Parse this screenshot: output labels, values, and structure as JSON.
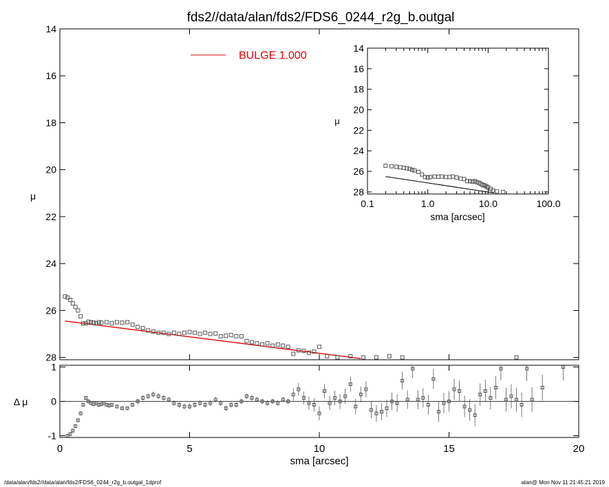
{
  "title": "fds2//data/alan/fds2/FDS6_0244_r2g_b.outgal",
  "footer": {
    "left": "/data/alan/fds2//data/alan/fds2/FDS6_0244_r2g_b.outgal_1dprof",
    "right": "alan@  Mon Nov 11 21:45:21 2019"
  },
  "colors": {
    "model": "#e00000",
    "data": "#555555",
    "axes": "#000000"
  },
  "chart_data": [
    {
      "id": "main",
      "type": "scatter",
      "xlabel": "sma [arcsec]",
      "ylabel": "μ",
      "xlim": [
        0,
        20
      ],
      "ylim": [
        28.1,
        14
      ],
      "y_inverted": true,
      "xticks": [
        0,
        5,
        10,
        15,
        20
      ],
      "yticks": [
        14,
        16,
        18,
        20,
        22,
        24,
        26,
        28
      ],
      "legend": {
        "label": "BULGE  1.000",
        "placement": "top-center"
      },
      "model_line": {
        "name": "BULGE",
        "x": [
          0.2,
          11.6
        ],
        "y": [
          26.45,
          28.05
        ]
      },
      "observed": {
        "x": [
          0.2,
          0.3,
          0.4,
          0.5,
          0.6,
          0.7,
          0.8,
          0.9,
          1.0,
          1.1,
          1.2,
          1.3,
          1.4,
          1.5,
          1.6,
          1.8,
          2.0,
          2.2,
          2.4,
          2.6,
          2.8,
          3.0,
          3.2,
          3.4,
          3.6,
          3.8,
          4.0,
          4.2,
          4.4,
          4.6,
          4.8,
          5.0,
          5.2,
          5.4,
          5.6,
          5.8,
          6.0,
          6.2,
          6.4,
          6.6,
          6.8,
          7.0,
          7.2,
          7.4,
          7.6,
          7.8,
          8.0,
          8.2,
          8.4,
          8.6,
          8.8,
          9.0,
          9.2,
          9.4,
          9.6,
          9.8,
          10.0,
          10.3,
          10.7,
          11.2,
          11.7,
          12.2,
          12.7,
          13.2,
          17.6
        ],
        "y": [
          25.4,
          25.45,
          25.55,
          25.7,
          25.85,
          26.0,
          26.25,
          26.55,
          26.55,
          26.48,
          26.5,
          26.52,
          26.55,
          26.5,
          26.52,
          26.5,
          26.55,
          26.5,
          26.52,
          26.5,
          26.6,
          26.7,
          26.75,
          26.85,
          26.9,
          26.95,
          26.95,
          27.0,
          26.95,
          27.0,
          26.95,
          26.92,
          26.95,
          27.0,
          26.95,
          27.0,
          26.98,
          27.1,
          27.08,
          27.05,
          27.1,
          27.1,
          27.3,
          27.35,
          27.4,
          27.45,
          27.4,
          27.5,
          27.45,
          27.5,
          27.55,
          27.85,
          27.7,
          27.72,
          27.8,
          27.75,
          27.55,
          27.95,
          28.0,
          27.95,
          28.0,
          28.0,
          27.95,
          28.0,
          28.0
        ]
      }
    },
    {
      "id": "residuals",
      "type": "scatter",
      "xlabel": "sma [arcsec]",
      "ylabel": "Δ μ",
      "xlim": [
        0,
        20
      ],
      "ylim": [
        -1.05,
        1.05
      ],
      "xticks": [
        0,
        5,
        10,
        15,
        20
      ],
      "yticks": [
        -1,
        0,
        1
      ],
      "points": {
        "x": [
          0.3,
          0.4,
          0.5,
          0.6,
          0.7,
          0.8,
          0.9,
          1.0,
          1.1,
          1.2,
          1.3,
          1.4,
          1.5,
          1.6,
          1.7,
          1.8,
          1.9,
          2.0,
          2.2,
          2.4,
          2.6,
          2.8,
          3.0,
          3.2,
          3.4,
          3.6,
          3.8,
          4.0,
          4.2,
          4.4,
          4.6,
          4.8,
          5.0,
          5.2,
          5.4,
          5.6,
          5.8,
          6.0,
          6.2,
          6.4,
          6.6,
          6.8,
          7.0,
          7.2,
          7.4,
          7.6,
          7.8,
          8.0,
          8.2,
          8.4,
          8.6,
          8.8,
          9.0,
          9.2,
          9.4,
          9.6,
          9.8,
          10.0,
          10.2,
          10.4,
          10.6,
          10.8,
          11.0,
          11.2,
          11.4,
          11.6,
          11.8,
          12.0,
          12.2,
          12.4,
          12.6,
          12.8,
          13.0,
          13.2,
          13.4,
          13.6,
          13.8,
          14.0,
          14.2,
          14.4,
          14.6,
          14.8,
          15.0,
          15.2,
          15.4,
          15.6,
          15.8,
          16.0,
          16.2,
          16.4,
          16.6,
          16.8,
          17.0,
          17.2,
          17.4,
          17.6,
          17.8,
          18.0,
          18.2,
          18.6,
          19.4
        ],
        "y": [
          -1.0,
          -0.95,
          -0.85,
          -0.72,
          -0.55,
          -0.35,
          -0.1,
          0.1,
          0.0,
          -0.05,
          -0.08,
          -0.05,
          -0.1,
          -0.08,
          -0.05,
          -0.1,
          -0.12,
          -0.1,
          -0.15,
          -0.2,
          -0.2,
          -0.1,
          0.0,
          0.1,
          0.15,
          0.2,
          0.15,
          0.1,
          0.05,
          -0.05,
          -0.1,
          -0.15,
          -0.15,
          -0.1,
          -0.05,
          -0.1,
          -0.05,
          0.05,
          -0.05,
          -0.2,
          -0.1,
          -0.1,
          0.0,
          0.15,
          0.1,
          0.05,
          0.0,
          -0.05,
          0.0,
          -0.05,
          0.05,
          0.0,
          0.2,
          0.35,
          0.1,
          -0.05,
          -0.1,
          -0.35,
          0.3,
          -0.05,
          0.1,
          0.0,
          0.15,
          0.5,
          -0.15,
          0.2,
          0.35,
          -0.25,
          -0.35,
          -0.3,
          -0.2,
          0.0,
          -0.05,
          0.6,
          0.05,
          0.95,
          0.05,
          0.1,
          -0.1,
          0.65,
          -0.3,
          -0.05,
          0.0,
          0.35,
          0.3,
          -0.15,
          -0.25,
          -0.4,
          0.2,
          0.3,
          0.1,
          0.4,
          0.95,
          0.05,
          0.15,
          0.05,
          -0.1,
          0.95,
          0.05,
          0.4,
          1.0
        ]
      }
    },
    {
      "id": "inset",
      "type": "scatter",
      "xlabel": "sma [arcsec]",
      "ylabel": "μ",
      "xscale": "log",
      "xlim": [
        0.1,
        100
      ],
      "ylim": [
        28.2,
        14
      ],
      "y_inverted": true,
      "xticks": [
        0.1,
        1,
        10,
        100
      ],
      "xticklabels": [
        "0.1",
        "1.0",
        "10.0",
        "100.0"
      ],
      "yticks": [
        14,
        16,
        18,
        20,
        22,
        24,
        26,
        28
      ],
      "model_line": {
        "x": [
          0.2,
          12.5
        ],
        "y": [
          26.5,
          28.1
        ]
      },
      "observed": {
        "x": [
          0.2,
          0.25,
          0.3,
          0.35,
          0.4,
          0.45,
          0.5,
          0.55,
          0.6,
          0.7,
          0.8,
          0.9,
          1.0,
          1.1,
          1.3,
          1.5,
          1.7,
          2.0,
          2.3,
          2.6,
          3.0,
          3.5,
          4.0,
          4.5,
          5.0,
          5.5,
          6.0,
          6.5,
          7.0,
          7.5,
          8.0,
          8.5,
          9.0,
          9.5,
          10.0,
          11.0,
          12.0,
          14.0,
          17.6
        ],
        "y": [
          25.45,
          25.5,
          25.55,
          25.6,
          25.65,
          25.7,
          25.75,
          25.85,
          25.9,
          26.05,
          26.3,
          26.55,
          26.6,
          26.55,
          26.5,
          26.52,
          26.5,
          26.55,
          26.55,
          26.5,
          26.6,
          26.7,
          26.75,
          26.95,
          26.95,
          27.0,
          26.95,
          27.05,
          27.1,
          27.2,
          27.3,
          27.35,
          27.4,
          27.5,
          27.55,
          27.7,
          27.85,
          27.95,
          28.0
        ]
      }
    }
  ]
}
